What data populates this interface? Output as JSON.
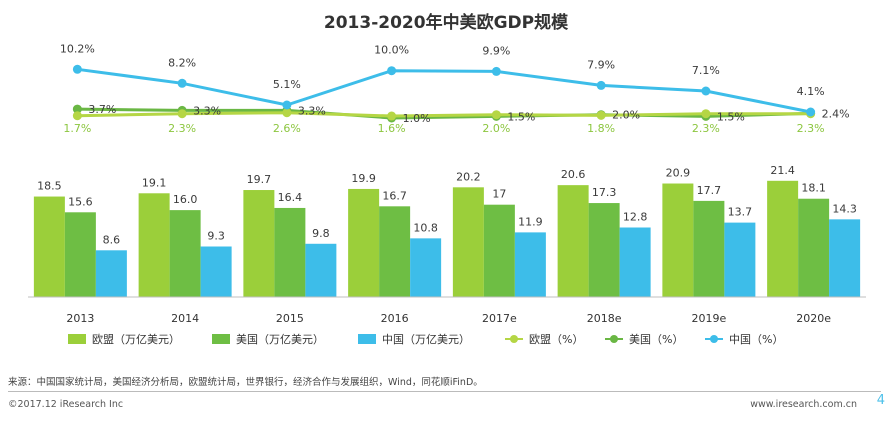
{
  "chart_data": {
    "type": "bar+line",
    "title": "2013-2020年中美欧GDP规模",
    "categories": [
      "2013",
      "2014",
      "2015",
      "2016",
      "2017e",
      "2018e",
      "2019e",
      "2020e"
    ],
    "bar_series": [
      {
        "name": "欧盟（万亿美元）",
        "color": "#9bcf3a",
        "values": [
          18.5,
          19.1,
          19.7,
          19.9,
          20.2,
          20.6,
          20.9,
          21.4
        ],
        "labels": [
          "18.5",
          "19.1",
          "19.7",
          "19.9",
          "20.2",
          "20.6",
          "20.9",
          "21.4"
        ]
      },
      {
        "name": "美国（万亿美元）",
        "color": "#6ebe44",
        "values": [
          15.6,
          16.0,
          16.4,
          16.7,
          17,
          17.3,
          17.7,
          18.1
        ],
        "labels": [
          "15.6",
          "16.0",
          "16.4",
          "16.7",
          "17",
          "17.3",
          "17.7",
          "18.1"
        ]
      },
      {
        "name": "中国（万亿美元）",
        "color": "#3dbde9",
        "values": [
          8.6,
          9.3,
          9.8,
          10.8,
          11.9,
          12.8,
          13.7,
          14.3
        ],
        "labels": [
          "8.6",
          "9.3",
          "9.8",
          "10.8",
          "11.9",
          "12.8",
          "13.7",
          "14.3"
        ]
      }
    ],
    "line_series": [
      {
        "name": "欧盟（%）",
        "color": "#b5d645",
        "values": [
          1.7,
          2.3,
          2.6,
          1.6,
          2.0,
          1.8,
          2.3,
          2.3
        ],
        "labels": [
          "1.7%",
          "2.3%",
          "2.6%",
          "1.6%",
          "2.0%",
          "1.8%",
          "2.3%",
          "2.3%"
        ]
      },
      {
        "name": "美国（%）",
        "color": "#6ab744",
        "values": [
          3.7,
          3.3,
          3.3,
          1.0,
          1.5,
          2.0,
          1.5,
          2.4
        ],
        "labels": [
          "3.7%",
          "3.3%",
          "3.3%",
          "1.0%",
          "1.5%",
          "2.0%",
          "1.5%",
          "2.4%"
        ]
      },
      {
        "name": "中国（%）",
        "color": "#3dbde9",
        "values": [
          10.2,
          8.2,
          5.1,
          10.0,
          9.9,
          7.9,
          7.1,
          4.1
        ],
        "labels": [
          "10.2%",
          "8.2%",
          "5.1%",
          "10.0%",
          "9.9%",
          "7.9%",
          "7.1%",
          "4.1%"
        ]
      }
    ],
    "legend_position": "bottom"
  },
  "source": "来源：中国国家统计局，美国经济分析局，欧盟统计局，世界银行，经济合作与发展组织，Wind，同花顺iFinD。",
  "copyright": "©2017.12 iResearch Inc",
  "website": "www.iresearch.com.cn",
  "page_number": "4"
}
